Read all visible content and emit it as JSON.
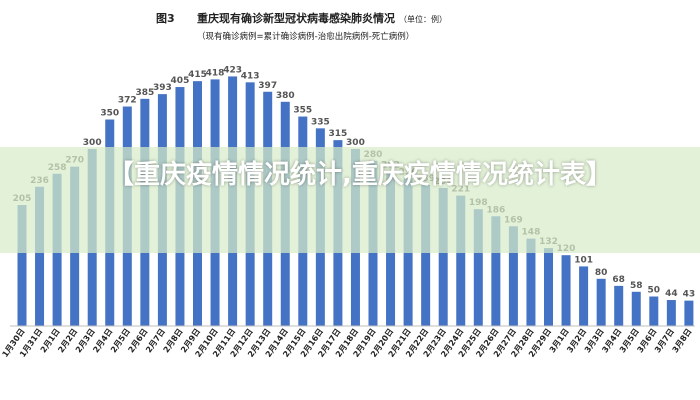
{
  "figure": {
    "label": "图3",
    "title": "重庆现有确诊新型冠状病毒感染肺炎情况",
    "unit": "（单位：例）",
    "subtitle": "（现有确诊病例=累计确诊病例-治愈出院病例-死亡病例）"
  },
  "overlay": {
    "headline": "【重庆疫情情况统计,重庆疫情情况统计表】"
  },
  "colors": {
    "bar": "#4472C4",
    "label": "#555555",
    "band": "#d7ebc8"
  },
  "chart_data": {
    "type": "bar",
    "title": "重庆现有确诊新型冠状病毒感染肺炎情况",
    "xlabel": "",
    "ylabel": "",
    "ylim": [
      0,
      450
    ],
    "grid": false,
    "categories": [
      "1月30日",
      "1月31日",
      "2月1日",
      "2月2日",
      "2月3日",
      "2月4日",
      "2月5日",
      "2月6日",
      "2月7日",
      "2月8日",
      "2月9日",
      "2月10日",
      "2月11日",
      "2月12日",
      "2月13日",
      "2月14日",
      "2月15日",
      "2月16日",
      "2月17日",
      "2月18日",
      "2月19日",
      "2月20日",
      "2月21日",
      "2月22日",
      "2月23日",
      "2月24日",
      "2月25日",
      "2月26日",
      "2月27日",
      "2月28日",
      "2月29日",
      "3月1日",
      "3月2日",
      "3月3日",
      "3月4日",
      "3月5日",
      "3月6日",
      "3月7日",
      "3月8日"
    ],
    "values": [
      205,
      236,
      258,
      270,
      300,
      350,
      372,
      385,
      393,
      405,
      415,
      418,
      423,
      413,
      397,
      380,
      355,
      335,
      315,
      300,
      280,
      262,
      250,
      239,
      234,
      221,
      198,
      186,
      169,
      148,
      132,
      120,
      101,
      80,
      68,
      58,
      50,
      44,
      43
    ]
  }
}
